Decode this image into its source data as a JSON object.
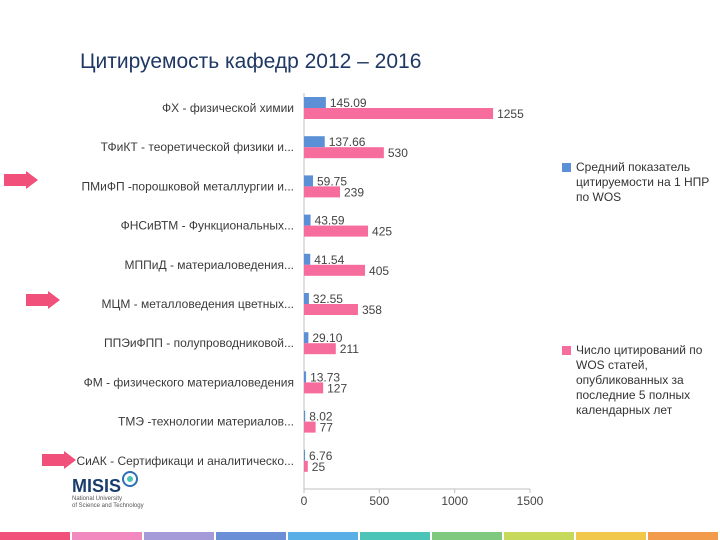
{
  "title": "Цитируемость кафедр 2012 – 2016",
  "colors": {
    "series1": "#5b8fd6",
    "series2": "#f56c9d",
    "arrow": "#f0507a",
    "axis": "#bfbfbf"
  },
  "legend": {
    "series1": "Средний показатель цитируемости на 1 НПР по WOS",
    "series2": "Число цитирований по WOS статей, опубликованных за последние 5 полных календарных лет"
  },
  "logo": {
    "text": "MISIS",
    "subtitle": "National University of Science and Technology"
  },
  "footer_strip_colors": [
    "#f0507a",
    "#f28ac0",
    "#a59bd8",
    "#6b8fd6",
    "#5ab0e6",
    "#4cc4b8",
    "#7fc97f",
    "#c6d95a",
    "#f2c84b",
    "#f29b4b"
  ],
  "chart_data": {
    "type": "bar",
    "orientation": "horizontal",
    "title": "Цитируемость кафедр 2012 – 2016",
    "categories": [
      "ФХ - физической химии",
      "ТФиКТ - теоретической физики и...",
      "ПМиФП -порошковой металлургии и...",
      "ФНСиВТМ - Функциональных...",
      "МППиД - материаловедения...",
      "МЦМ - металловедения цветных...",
      "ППЭиФПП - полупроводниковой...",
      "ФМ - физического материаловедения",
      "ТМЭ -технологии материалов...",
      "СиАК - Сертификаци и аналитическо..."
    ],
    "series": [
      {
        "name": "Средний показатель цитируемости на 1 НПР по WOS",
        "values": [
          145.09,
          137.66,
          59.75,
          43.59,
          41.54,
          32.55,
          29.1,
          13.73,
          8.02,
          6.76
        ],
        "labels": [
          "145.09",
          "137.66",
          "59.75",
          "43.59",
          "41.54",
          "32.55",
          "29.10",
          "13.73",
          "8.02",
          "6.76"
        ]
      },
      {
        "name": "Число цитирований по WOS статей, опубликованных за последние 5 полных календарных лет",
        "values": [
          1255,
          530,
          239,
          425,
          405,
          358,
          211,
          127,
          77,
          25
        ],
        "labels": [
          "1255",
          "530",
          "239",
          "425",
          "405",
          "358",
          "211",
          "127",
          "77",
          "25"
        ]
      }
    ],
    "xlim": [
      0,
      1500
    ],
    "xticks": [
      "0",
      "500",
      "1000",
      "1500"
    ],
    "grid": false,
    "legend_position": "right"
  }
}
